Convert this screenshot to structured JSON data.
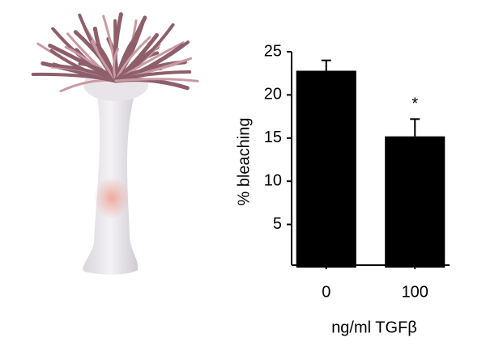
{
  "chart_data": {
    "type": "bar",
    "y_label": "% bleaching",
    "x_label": "ng/ml TGFβ",
    "categories": [
      "0",
      "100"
    ],
    "values": [
      22.8,
      15.2
    ],
    "errors": [
      1.2,
      2.0
    ],
    "color": "#000000",
    "annotations": [
      "",
      "*"
    ],
    "ylim": [
      0,
      25
    ],
    "yticks": [
      5,
      10,
      15,
      20,
      25
    ],
    "grid": false
  }
}
